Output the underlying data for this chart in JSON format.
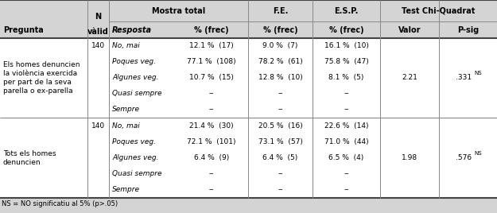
{
  "footnote": "NS = NO significatiu al 5% (p>.05)",
  "sections": [
    {
      "pregunta": "Els homes denuncien\nla violència exercida\nper part de la seva\nparella o ex-parella",
      "n": "140",
      "row_labels": [
        "No, mai",
        "Poques veg.",
        "Algunes veg.",
        "Quasi sempre",
        "Sempre"
      ],
      "row_mt": [
        "12.1 %  (17)",
        "77.1 %  (108)",
        "10.7 %  (15)",
        "--",
        "--"
      ],
      "row_fe": [
        "9.0 %  (7)",
        "78.2 %  (61)",
        "12.8 %  (10)",
        "--",
        "--"
      ],
      "row_esp": [
        "16.1 %  (10)",
        "75.8 %  (47)",
        "8.1 %  (5)",
        "--",
        "--"
      ],
      "valor": "2.21",
      "psig": ".331",
      "valor_row": 2
    },
    {
      "pregunta": "Tots els homes\ndenuncien",
      "n": "140",
      "row_labels": [
        "No, mai",
        "Poques veg.",
        "Algunes veg.",
        "Quasi sempre",
        "Sempre"
      ],
      "row_mt": [
        "21.4 %  (30)",
        "72.1 %  (101)",
        "6.4 %  (9)",
        "--",
        "--"
      ],
      "row_fe": [
        "20.5 %  (16)",
        "73.1 %  (57)",
        "6.4 %  (5)",
        "--",
        "--"
      ],
      "row_esp": [
        "22.6 %  (14)",
        "71.0 %  (44)",
        "6.5 %  (4)",
        "--",
        "--"
      ],
      "valor": "1.98",
      "psig": ".576",
      "valor_row": 2
    }
  ],
  "bg_gray": "#d4d4d4",
  "bg_white": "#ffffff",
  "line_color": "#888888",
  "line_color_thick": "#444444",
  "fs": 6.5,
  "fs_header": 7.0,
  "fs_small": 5.0
}
